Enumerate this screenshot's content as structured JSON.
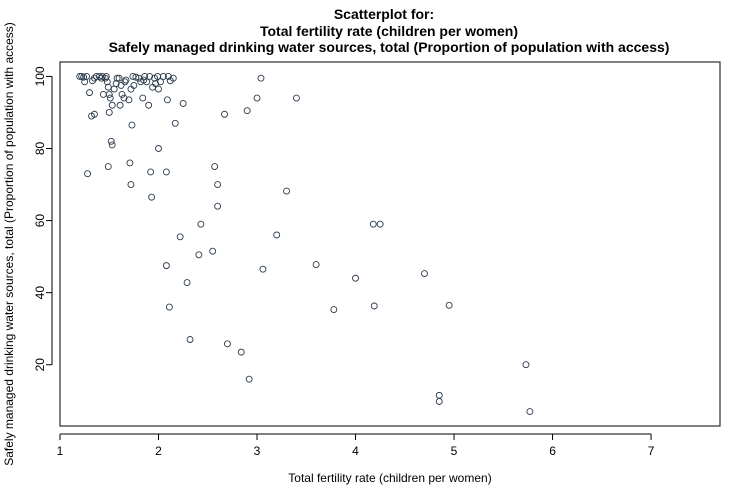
{
  "chart_data": {
    "type": "scatter",
    "title": [
      "Scatterplot for:",
      "Total fertility rate (children per women)",
      "Safely managed drinking water sources, total (Proportion of population with access)"
    ],
    "xlabel": "Total fertility rate (children per women)",
    "ylabel": "Safely managed drinking water sources, total (Proportion of population with access)",
    "xlim": [
      1,
      7.7
    ],
    "ylim": [
      3,
      104
    ],
    "xticks": [
      1,
      2,
      3,
      4,
      5,
      6,
      7
    ],
    "yticks": [
      20,
      40,
      60,
      80,
      100
    ],
    "grid": false,
    "marker_color": "#2b3a4a",
    "points": [
      [
        1.2,
        100
      ],
      [
        1.22,
        100
      ],
      [
        1.24,
        99.8
      ],
      [
        1.25,
        98.5
      ],
      [
        1.27,
        100
      ],
      [
        1.3,
        95.5
      ],
      [
        1.33,
        98.8
      ],
      [
        1.35,
        99.5
      ],
      [
        1.37,
        100
      ],
      [
        1.4,
        100
      ],
      [
        1.42,
        99.5
      ],
      [
        1.43,
        100
      ],
      [
        1.44,
        95.0
      ],
      [
        1.46,
        99.5
      ],
      [
        1.47,
        100
      ],
      [
        1.48,
        98.5
      ],
      [
        1.49,
        97.0
      ],
      [
        1.5,
        95.0
      ],
      [
        1.51,
        94.0
      ],
      [
        1.53,
        92.0
      ],
      [
        1.55,
        96.5
      ],
      [
        1.57,
        98.0
      ],
      [
        1.58,
        99.5
      ],
      [
        1.6,
        99.5
      ],
      [
        1.61,
        92.0
      ],
      [
        1.62,
        97.5
      ],
      [
        1.63,
        95.0
      ],
      [
        1.65,
        94.0
      ],
      [
        1.66,
        98.5
      ],
      [
        1.67,
        99.0
      ],
      [
        1.7,
        93.5
      ],
      [
        1.72,
        96.5
      ],
      [
        1.74,
        100
      ],
      [
        1.75,
        97.5
      ],
      [
        1.77,
        99.8
      ],
      [
        1.8,
        99.5
      ],
      [
        1.82,
        98.5
      ],
      [
        1.84,
        94.0
      ],
      [
        1.85,
        99.0
      ],
      [
        1.86,
        100
      ],
      [
        1.88,
        98.5
      ],
      [
        1.9,
        92.0
      ],
      [
        1.91,
        100
      ],
      [
        1.94,
        97.0
      ],
      [
        1.96,
        99.5
      ],
      [
        1.97,
        98.0
      ],
      [
        1.99,
        100
      ],
      [
        2.0,
        96.5
      ],
      [
        2.02,
        98.5
      ],
      [
        2.05,
        100
      ],
      [
        2.09,
        93.5
      ],
      [
        2.1,
        100
      ],
      [
        2.12,
        98.8
      ],
      [
        2.15,
        99.5
      ],
      [
        2.25,
        92.5
      ],
      [
        1.32,
        89.0
      ],
      [
        1.35,
        89.5
      ],
      [
        1.5,
        90.0
      ],
      [
        1.49,
        75.0
      ],
      [
        1.52,
        82.0
      ],
      [
        1.53,
        81.0
      ],
      [
        1.28,
        73.0
      ],
      [
        1.71,
        76.0
      ],
      [
        1.72,
        70.0
      ],
      [
        1.73,
        86.5
      ],
      [
        1.92,
        73.5
      ],
      [
        1.93,
        66.5
      ],
      [
        2.0,
        80.0
      ],
      [
        2.08,
        73.5
      ],
      [
        2.17,
        87.0
      ],
      [
        2.08,
        47.5
      ],
      [
        2.11,
        36.0
      ],
      [
        2.22,
        55.5
      ],
      [
        2.29,
        42.8
      ],
      [
        2.32,
        27.0
      ],
      [
        2.41,
        50.5
      ],
      [
        2.43,
        59.0
      ],
      [
        2.55,
        51.5
      ],
      [
        2.57,
        75.0
      ],
      [
        2.6,
        70.0
      ],
      [
        2.6,
        64.0
      ],
      [
        2.67,
        89.5
      ],
      [
        2.7,
        25.8
      ],
      [
        2.84,
        23.5
      ],
      [
        2.9,
        90.5
      ],
      [
        2.92,
        16.0
      ],
      [
        3.0,
        94.0
      ],
      [
        3.04,
        99.5
      ],
      [
        3.06,
        46.5
      ],
      [
        3.2,
        56.0
      ],
      [
        3.3,
        68.2
      ],
      [
        3.4,
        94.0
      ],
      [
        3.6,
        47.8
      ],
      [
        3.78,
        35.3
      ],
      [
        4.0,
        44.0
      ],
      [
        4.18,
        59.0
      ],
      [
        4.19,
        36.3
      ],
      [
        4.25,
        59.0
      ],
      [
        4.7,
        45.3
      ],
      [
        4.85,
        11.5
      ],
      [
        4.85,
        9.8
      ],
      [
        4.95,
        36.5
      ],
      [
        5.73,
        20.0
      ],
      [
        5.77,
        7.0
      ]
    ]
  }
}
